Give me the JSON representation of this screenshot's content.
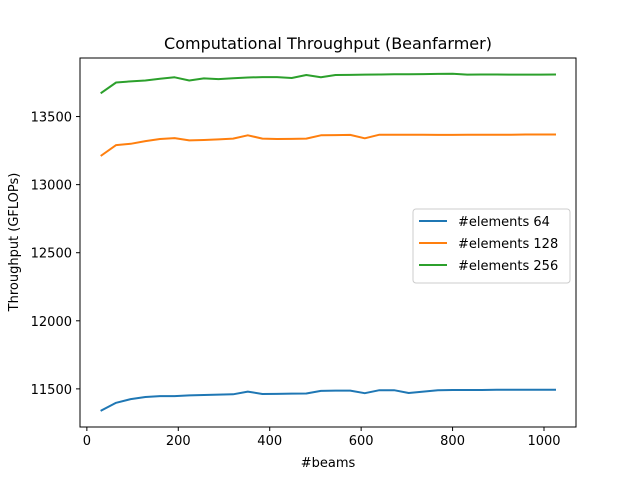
{
  "chart_data": {
    "type": "line",
    "title": "Computational Throughput (Beanfarmer)",
    "xlabel": "#beams",
    "ylabel": "Throughput (GFLOPs)",
    "xlim": [
      -15,
      1070
    ],
    "ylim": [
      11220,
      13930
    ],
    "xticks": [
      0,
      200,
      400,
      600,
      800,
      1000
    ],
    "yticks": [
      11500,
      12000,
      12500,
      13000,
      13500
    ],
    "grid": false,
    "legend_position": "center-right",
    "x": [
      32,
      64,
      96,
      128,
      160,
      192,
      224,
      256,
      288,
      320,
      352,
      384,
      416,
      448,
      480,
      512,
      544,
      576,
      608,
      640,
      672,
      704,
      736,
      768,
      800,
      832,
      864,
      896,
      928,
      960,
      992,
      1024
    ],
    "series": [
      {
        "name": "#elements 64",
        "color": "#1f77b4",
        "values": [
          11342,
          11398,
          11425,
          11440,
          11447,
          11447,
          11452,
          11455,
          11458,
          11460,
          11480,
          11462,
          11463,
          11465,
          11466,
          11485,
          11487,
          11487,
          11468,
          11490,
          11490,
          11470,
          11480,
          11490,
          11492,
          11492,
          11492,
          11493,
          11493,
          11494,
          11494,
          11494
        ]
      },
      {
        "name": "#elements 128",
        "color": "#ff7f0e",
        "values": [
          13215,
          13290,
          13300,
          13320,
          13335,
          13342,
          13325,
          13328,
          13332,
          13338,
          13362,
          13338,
          13335,
          13336,
          13338,
          13362,
          13364,
          13365,
          13340,
          13367,
          13367,
          13367,
          13366,
          13365,
          13365,
          13366,
          13366,
          13367,
          13367,
          13368,
          13368,
          13368
        ]
      },
      {
        "name": "#elements 256",
        "color": "#2ca02c",
        "values": [
          13675,
          13750,
          13758,
          13765,
          13778,
          13788,
          13765,
          13780,
          13775,
          13782,
          13787,
          13790,
          13790,
          13783,
          13805,
          13788,
          13805,
          13806,
          13808,
          13809,
          13810,
          13811,
          13812,
          13813,
          13814,
          13808,
          13809,
          13809,
          13808,
          13808,
          13808,
          13809
        ]
      }
    ]
  }
}
